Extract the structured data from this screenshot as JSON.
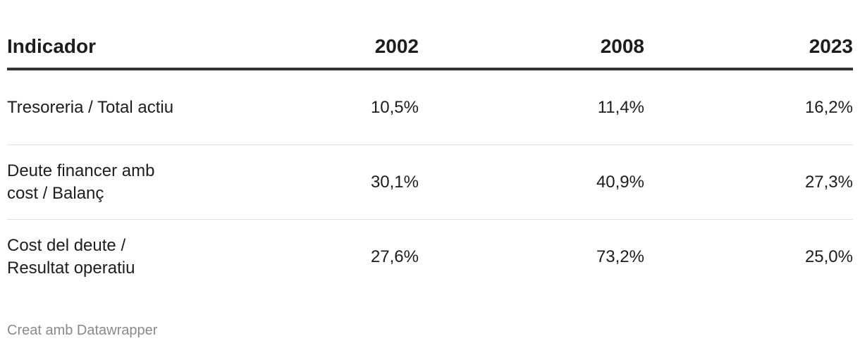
{
  "table": {
    "header": [
      "Indicador",
      "2002",
      "2008",
      "2023"
    ],
    "rows": [
      [
        "Tresoreria / Total actiu",
        "10,5%",
        "11,4%",
        "16,2%"
      ],
      [
        "Deute financer amb cost / Balanç",
        "30,1%",
        "40,9%",
        "27,3%"
      ],
      [
        "Cost del deute / Resultat operatiu",
        "27,6%",
        "73,2%",
        "25,0%"
      ]
    ]
  },
  "footer": "Creat amb Datawrapper"
}
